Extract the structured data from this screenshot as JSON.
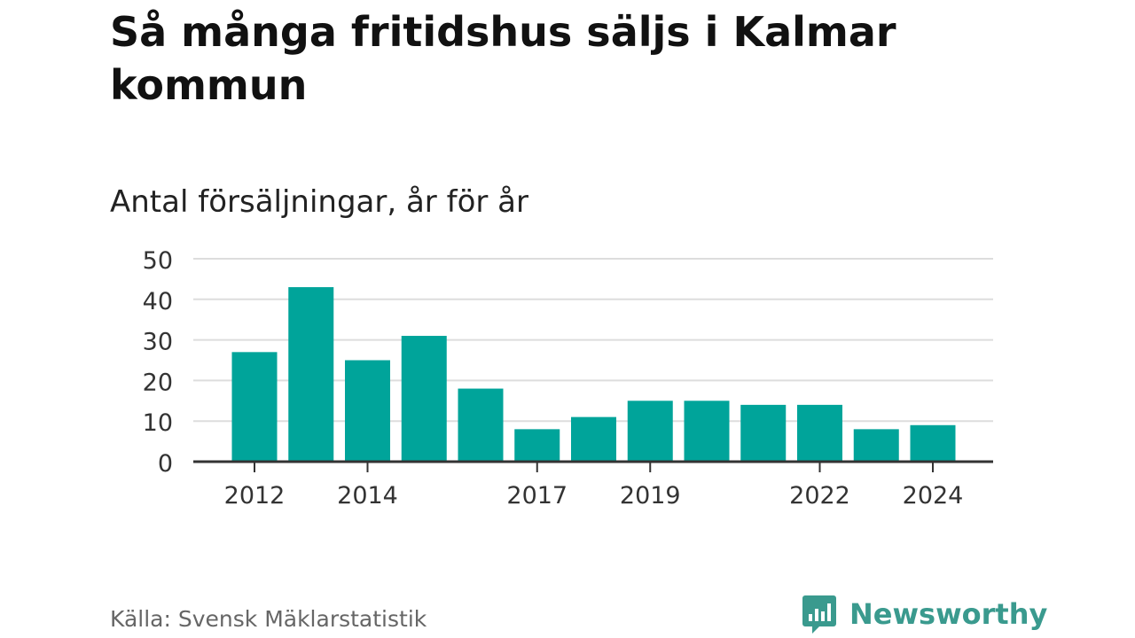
{
  "header": {
    "title": "Så många fritidshus säljs i Kalmar kommun",
    "subtitle": "Antal försäljningar, år för år"
  },
  "footer": {
    "source": "Källa: Svensk Mäklarstatistik",
    "brand": "Newsworthy"
  },
  "colors": {
    "bar": "#00a49a",
    "grid": "#dddddd",
    "axis": "#333333",
    "brand": "#3a9a8e"
  },
  "chart_data": {
    "type": "bar",
    "categories": [
      "2012",
      "2013",
      "2014",
      "2015",
      "2016",
      "2017",
      "2018",
      "2019",
      "2020",
      "2021",
      "2022",
      "2023",
      "2024"
    ],
    "values": [
      27,
      43,
      25,
      31,
      18,
      8,
      11,
      15,
      15,
      14,
      14,
      8,
      9
    ],
    "x_tick_labels": [
      "2012",
      "2014",
      "2017",
      "2019",
      "2022",
      "2024"
    ],
    "y_ticks": [
      0,
      10,
      20,
      30,
      40,
      50
    ],
    "ylim": [
      0,
      50
    ],
    "grid": true,
    "xlabel": "",
    "ylabel": ""
  }
}
